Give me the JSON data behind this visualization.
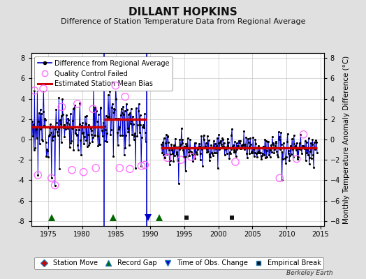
{
  "title": "DILLANT HOPKINS",
  "subtitle": "Difference of Station Temperature Data from Regional Average",
  "ylabel_right": "Monthly Temperature Anomaly Difference (°C)",
  "xlim": [
    1972.5,
    2015.5
  ],
  "ylim": [
    -8.5,
    8.5
  ],
  "yticks": [
    -8,
    -6,
    -4,
    -2,
    0,
    2,
    4,
    6,
    8
  ],
  "xticks": [
    1975,
    1980,
    1985,
    1990,
    1995,
    2000,
    2005,
    2010,
    2015
  ],
  "fig_bg_color": "#e0e0e0",
  "plot_bg_color": "#ffffff",
  "grid_color": "#c8c8c8",
  "blue_line_color": "#0000cc",
  "dot_color": "#000000",
  "qc_circle_color": "#ff66ff",
  "bias_line_color": "#cc0000",
  "record_gap_color": "#006600",
  "time_obs_color": "#0000cc",
  "empirical_break_color": "#111111",
  "station_move_color": "#cc0000",
  "segment_biases": [
    {
      "x_start": 1972.5,
      "x_end": 1983.2,
      "y": 1.2
    },
    {
      "x_start": 1983.2,
      "x_end": 1989.5,
      "y": 2.0
    },
    {
      "x_start": 1991.5,
      "x_end": 2014.5,
      "y": -0.85
    }
  ],
  "vertical_gap_lines": [
    {
      "x": 1983.2,
      "color": "#0000cc",
      "linewidth": 1.2
    },
    {
      "x": 1989.5,
      "color": "#0000cc",
      "linewidth": 1.2
    }
  ],
  "record_gaps": [
    1975.5,
    1984.5,
    1991.3
  ],
  "empirical_breaks": [
    1995.3,
    2002.0
  ],
  "time_obs_changes": [
    1989.7
  ],
  "title_fontsize": 11,
  "subtitle_fontsize": 8,
  "tick_fontsize": 7,
  "ylabel_fontsize": 7.5,
  "legend_fontsize": 7,
  "marker_y": -7.7,
  "seg1_bias": 1.2,
  "seg1_noise": 1.3,
  "seg1_start": 1972.6,
  "seg1_end": 1983.1,
  "seg2_bias": 2.0,
  "seg2_noise": 1.4,
  "seg2_start": 1983.2,
  "seg2_end": 1989.4,
  "seg3_bias": -0.85,
  "seg3_noise": 0.75,
  "seg3_start": 1991.6,
  "seg3_end": 2014.5
}
